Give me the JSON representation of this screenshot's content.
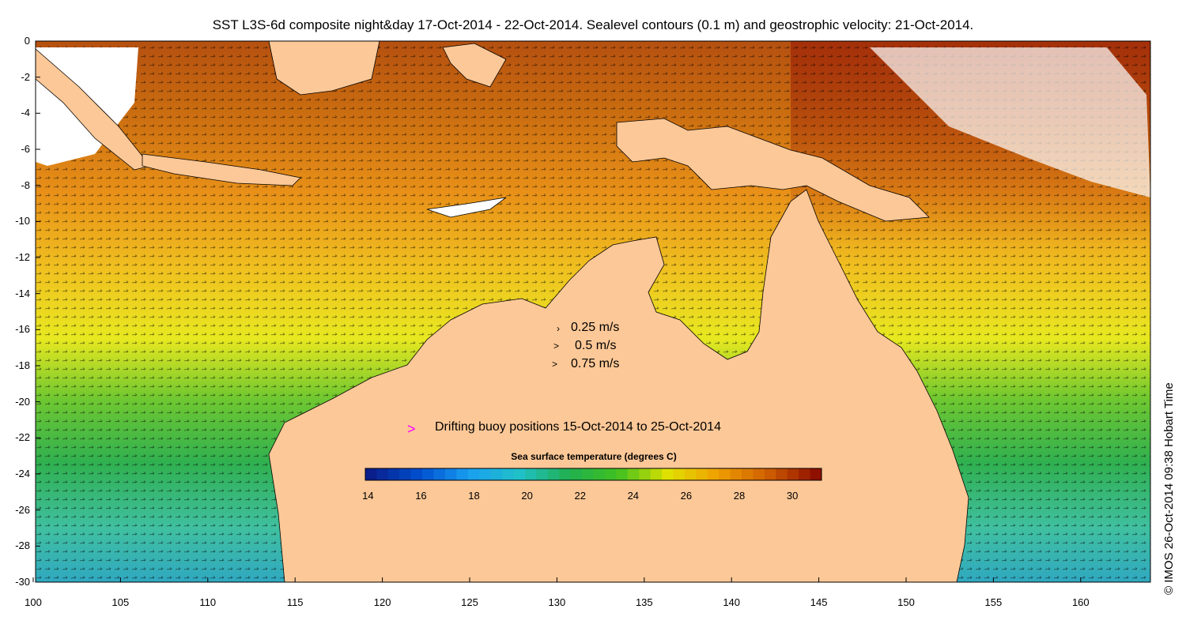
{
  "title": "SST L3S-6d composite night&day 17-Oct-2014 - 22-Oct-2014. Sealevel contours (0.1 m) and geostrophic velocity: 21-Oct-2014.",
  "axes": {
    "y_ticks": [
      "0",
      "-2",
      "-4",
      "-6",
      "-8",
      "-10",
      "-12",
      "-14",
      "-16",
      "-18",
      "-20",
      "-22",
      "-24",
      "-26",
      "-28",
      "-30"
    ],
    "x_ticks": [
      "100",
      "105",
      "110",
      "115",
      "120",
      "125",
      "130",
      "135",
      "140",
      "145",
      "150",
      "155",
      "160"
    ]
  },
  "velocity_legend": [
    "0.25 m/s",
    "0.5 m/s",
    "0.75 m/s"
  ],
  "buoy_legend": {
    "marker": ">",
    "label": "Drifting buoy positions 15-Oct-2014 to 25-Oct-2014",
    "color": "#ff00ff"
  },
  "colorbar": {
    "title": "Sea surface temperature (degrees C)",
    "ticks": [
      "14",
      "16",
      "18",
      "20",
      "22",
      "24",
      "26",
      "28",
      "30"
    ],
    "range": [
      13.9,
      31.1
    ],
    "colors": [
      "#0a1e8c",
      "#0050d0",
      "#1aa0f0",
      "#20c0c8",
      "#20b050",
      "#40c020",
      "#e0e000",
      "#f0a000",
      "#d06000",
      "#901000"
    ]
  },
  "credit": "© IMOS 26-Oct-2014 09:38 Hobart Time",
  "colors": {
    "land": "#fdc897",
    "no_data": "#ffffff",
    "buoy": "#ff00ff"
  }
}
